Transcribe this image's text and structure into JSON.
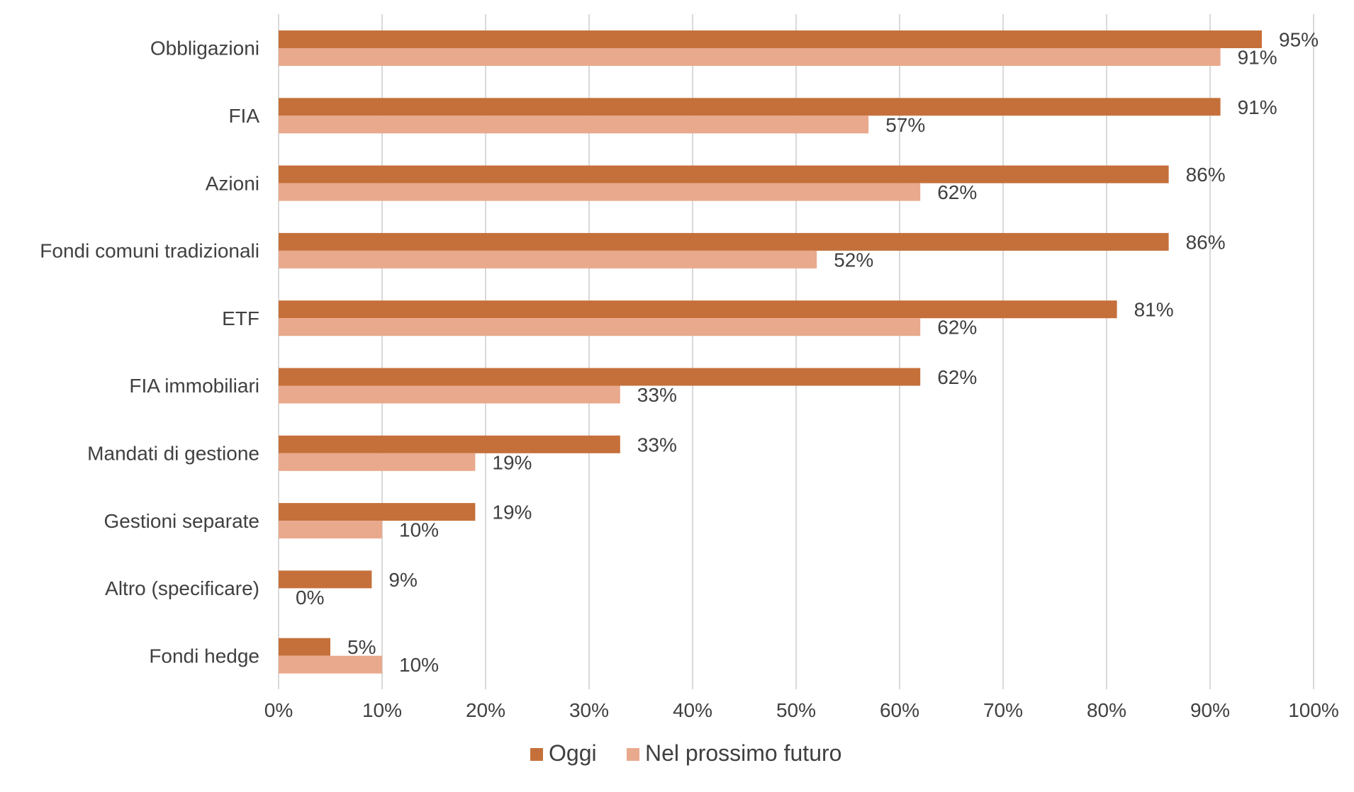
{
  "chart_data": {
    "type": "bar",
    "orientation": "horizontal",
    "categories": [
      "Obbligazioni",
      "FIA",
      "Azioni",
      "Fondi comuni tradizionali",
      "ETF",
      "FIA immobiliari",
      "Mandati di gestione",
      "Gestioni separate",
      "Altro (specificare)",
      "Fondi hedge"
    ],
    "series": [
      {
        "name": "Oggi",
        "color": "#C5703A",
        "values": [
          95,
          91,
          86,
          86,
          81,
          62,
          33,
          19,
          9,
          5
        ],
        "labels": [
          "95%",
          "91%",
          "86%",
          "86%",
          "81%",
          "62%",
          "33%",
          "19%",
          "9%",
          "5%"
        ]
      },
      {
        "name": "Nel prossimo futuro",
        "color": "#E9A98D",
        "values": [
          91,
          57,
          62,
          52,
          62,
          33,
          19,
          10,
          0,
          10
        ],
        "labels": [
          "91%",
          "57%",
          "62%",
          "52%",
          "62%",
          "33%",
          "19%",
          "10%",
          "0%",
          "10%"
        ]
      }
    ],
    "x_ticks": [
      "0%",
      "10%",
      "20%",
      "30%",
      "40%",
      "50%",
      "60%",
      "70%",
      "80%",
      "90%",
      "100%"
    ],
    "xlim": [
      0,
      100
    ],
    "title": "",
    "xlabel": "",
    "ylabel": "",
    "grid": "vertical",
    "legend_position": "bottom"
  }
}
